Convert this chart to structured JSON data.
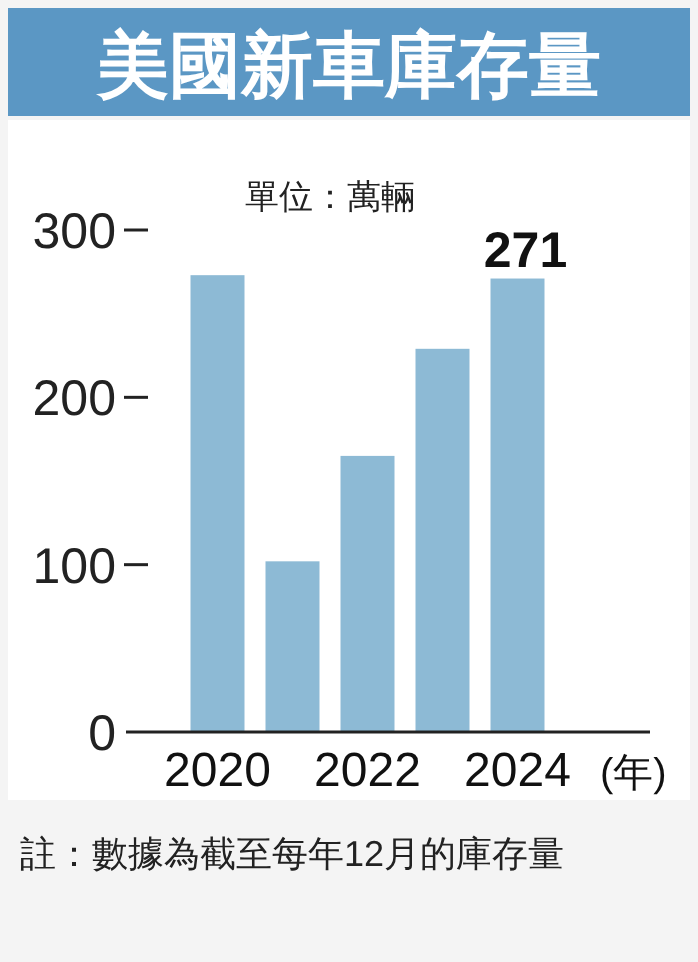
{
  "chart_data": {
    "type": "bar",
    "title": "美國新車庫存量",
    "subtitle": "單位：萬輛",
    "xlabel": "(年)",
    "categories": [
      "2020",
      null,
      "2022",
      null,
      "2024"
    ],
    "values": [
      273,
      102,
      165,
      229,
      271
    ],
    "value_labels": [
      null,
      null,
      null,
      null,
      "271"
    ],
    "color": "#8dbad5",
    "ylim": [
      0,
      300
    ],
    "yticks": [
      0,
      100,
      200,
      300
    ],
    "grid": false,
    "annotations": [
      "註：數據為截至每年12月的庫存量"
    ]
  }
}
